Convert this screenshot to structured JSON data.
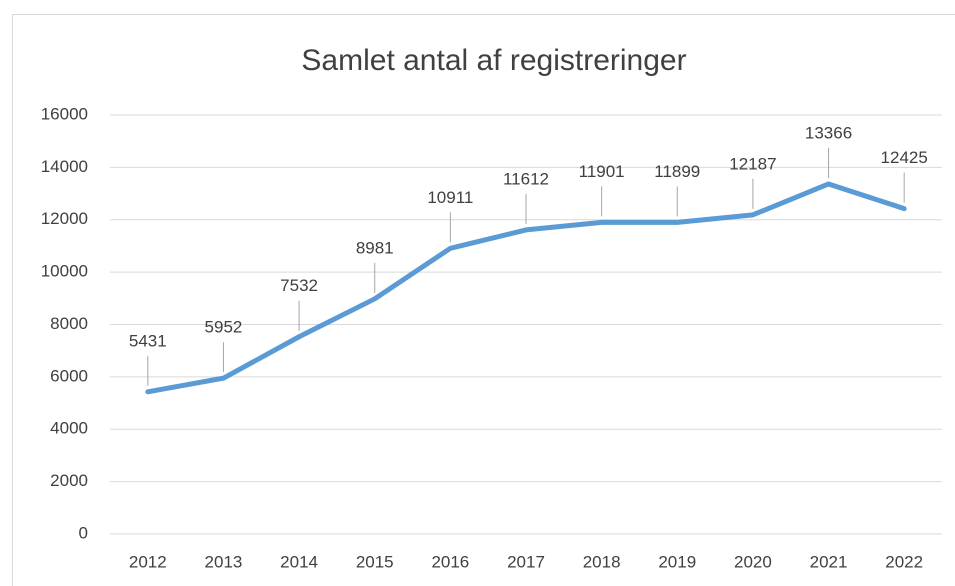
{
  "chart_data": {
    "type": "line",
    "title": "Samlet antal af registreringer",
    "categories": [
      "2012",
      "2013",
      "2014",
      "2015",
      "2016",
      "2017",
      "2018",
      "2019",
      "2020",
      "2021",
      "2022"
    ],
    "series": [
      {
        "name": "Samlet antal af registreringer",
        "color": "#5b9bd5",
        "values": [
          5431,
          5952,
          7532,
          8981,
          10911,
          11612,
          11901,
          11899,
          12187,
          13366,
          12425
        ]
      }
    ],
    "ylim": [
      0,
      16000
    ],
    "yticks": [
      0,
      2000,
      4000,
      6000,
      8000,
      10000,
      12000,
      14000,
      16000
    ],
    "grid": true,
    "data_labels": true
  }
}
